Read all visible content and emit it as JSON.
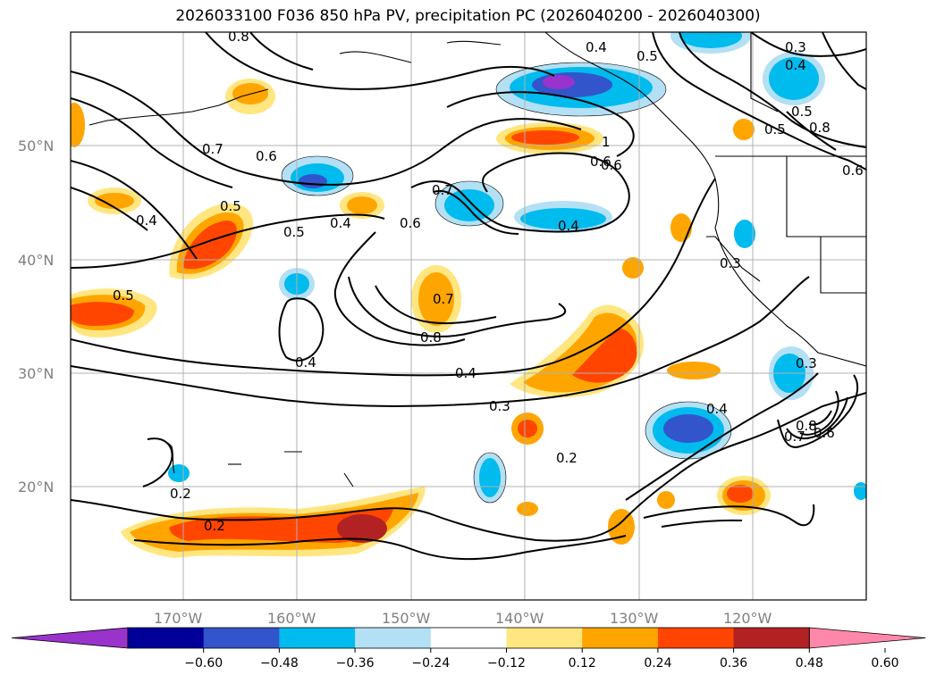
{
  "title": "2026033100 F036 850 hPa PV, precipitation PC (2026040200 - 2026040300)",
  "lat_labels": [
    "50°N",
    "40°N",
    "30°N",
    "20°N"
  ],
  "lon_labels": [
    "170°W",
    "160°W",
    "150°W",
    "140°W",
    "130°W",
    "120°W"
  ],
  "contour_labels": [
    "0.8",
    "0.4",
    "0.5",
    "0.3",
    "0.4",
    "0.7",
    "0.6",
    "0.5",
    "0.4",
    "0.4",
    "0.5",
    "0.6",
    "0.7",
    "0.4",
    "0.6",
    "0.7",
    "0.8",
    "0.4",
    "0.3",
    "0.2",
    "0.2",
    "0.2",
    "0.4",
    "0.8",
    "0.7",
    "0.6",
    "0.3",
    "0.5",
    "0.8",
    "0.5",
    "0.6",
    "0.6",
    "0.3",
    "0.4",
    "1",
    "0.5"
  ],
  "colorbar": {
    "ticks": [
      "−0.60",
      "−0.48",
      "−0.36",
      "−0.24",
      "−0.12",
      "0.12",
      "0.24",
      "0.36",
      "0.48",
      "0.60"
    ],
    "colors": [
      "#9933cc",
      "#000099",
      "#3355cc",
      "#00bbee",
      "#b3e0f5",
      "#ffffff",
      "#ffe680",
      "#ffa500",
      "#ff4500",
      "#b22222",
      "#ff88aa"
    ]
  },
  "palette": {
    "neg_light": "#b3e0f5",
    "neg_mid": "#00bbee",
    "neg_strong": "#3355cc",
    "neg_max": "#9933cc",
    "pos_light": "#ffe680",
    "pos_mid": "#ffa500",
    "pos_strong": "#ff4500",
    "pos_max": "#b22222"
  }
}
